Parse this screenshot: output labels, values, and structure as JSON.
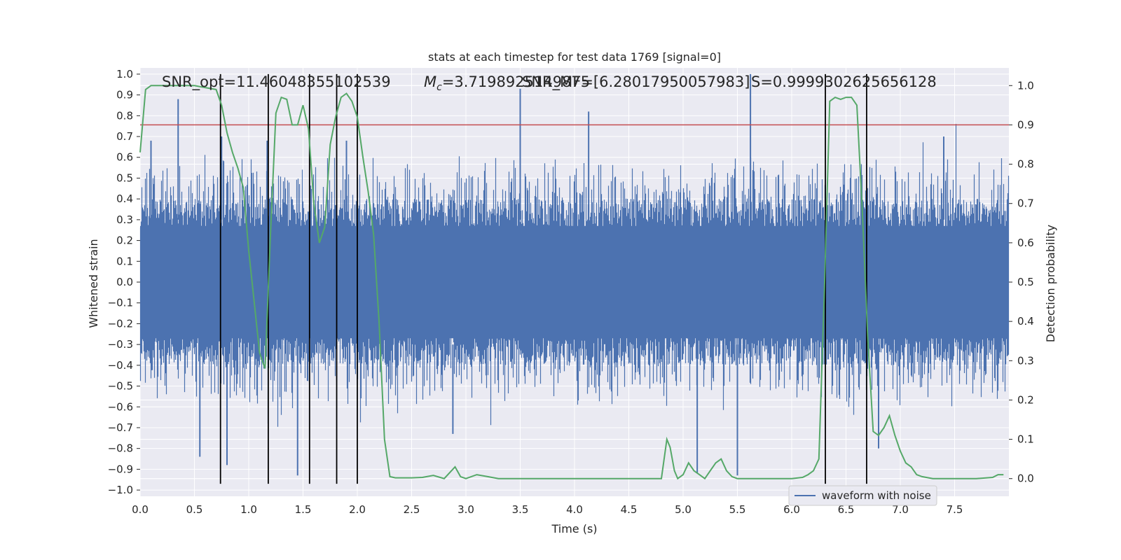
{
  "chart_data": {
    "type": "line",
    "title": "stats at each timestep for test data 1769 [signal=0]",
    "xlabel": "Time (s)",
    "ylabel": "Whitened strain",
    "y2label": "Detection probability",
    "xlim": [
      0.0,
      8.0
    ],
    "ylim": [
      -1.03,
      1.03
    ],
    "y2lim": [
      -0.045,
      1.045
    ],
    "xticks": [
      "0.0",
      "0.5",
      "1.0",
      "1.5",
      "2.0",
      "2.5",
      "3.0",
      "3.5",
      "4.0",
      "4.5",
      "5.0",
      "5.5",
      "6.0",
      "6.5",
      "7.0",
      "7.5"
    ],
    "yticks": [
      "1.0",
      "0.9",
      "0.8",
      "0.7",
      "0.6",
      "0.5",
      "0.4",
      "0.3",
      "0.2",
      "0.1",
      "0.0",
      "−0.1",
      "−0.2",
      "−0.3",
      "−0.4",
      "−0.5",
      "−0.6",
      "−0.7",
      "−0.8",
      "−0.9",
      "−1.0"
    ],
    "y2ticks": [
      "1.0",
      "0.9",
      "0.8",
      "0.7",
      "0.6",
      "0.5",
      "0.4",
      "0.3",
      "0.2",
      "0.1",
      "0.0"
    ],
    "grid": true,
    "legend": {
      "placement": "lower-right",
      "entries": [
        "waveform with noise"
      ]
    },
    "annotations": {
      "snr_opt": "SNR_opt=11.46048355102539",
      "mc_prefix": "M",
      "mc_sub": "c",
      "mc_value": "=3.7198925149875",
      "snr_mf": "SNR_MF=[6.28017950057983]",
      "s": "S=0.9999302625656128"
    },
    "colors": {
      "strain": "#4c72b0",
      "probability": "#55a868",
      "threshold": "#c44e52",
      "markers": "#000000",
      "background": "#eaeaf2",
      "grid": "#ffffff"
    },
    "threshold": 0.9,
    "vertical_markers": [
      0.74,
      1.18,
      1.56,
      1.81,
      2.0,
      6.31,
      6.69
    ],
    "series": [
      {
        "name": "waveform with noise",
        "axis": "left",
        "envelope_note": "dense noise; core approx ±0.3, spikes to ±1.0",
        "peaks": [
          {
            "x": 0.1,
            "y": 0.68
          },
          {
            "x": 0.35,
            "y": 0.88
          },
          {
            "x": 0.75,
            "y": 0.7
          },
          {
            "x": 1.17,
            "y": 0.68
          },
          {
            "x": 1.9,
            "y": 0.68
          },
          {
            "x": 3.5,
            "y": 0.93
          },
          {
            "x": 4.13,
            "y": 0.82
          },
          {
            "x": 5.62,
            "y": 1.0
          },
          {
            "x": 7.4,
            "y": 0.7
          }
        ],
        "troughs": [
          {
            "x": 0.55,
            "y": -0.84
          },
          {
            "x": 0.8,
            "y": -0.88
          },
          {
            "x": 1.45,
            "y": -0.93
          },
          {
            "x": 2.88,
            "y": -0.73
          },
          {
            "x": 5.13,
            "y": -0.92
          },
          {
            "x": 5.5,
            "y": -0.93
          },
          {
            "x": 6.8,
            "y": -0.8
          }
        ]
      },
      {
        "name": "",
        "axis": "right",
        "x": [
          0.0,
          0.05,
          0.1,
          0.2,
          0.3,
          0.4,
          0.5,
          0.6,
          0.7,
          0.75,
          0.8,
          0.85,
          0.9,
          0.95,
          1.0,
          1.05,
          1.1,
          1.15,
          1.2,
          1.25,
          1.3,
          1.35,
          1.4,
          1.45,
          1.5,
          1.55,
          1.6,
          1.65,
          1.7,
          1.75,
          1.8,
          1.85,
          1.9,
          1.95,
          2.0,
          2.05,
          2.1,
          2.15,
          2.2,
          2.25,
          2.3,
          2.35,
          2.5,
          2.6,
          2.7,
          2.8,
          2.9,
          2.95,
          3.0,
          3.1,
          3.2,
          3.3,
          3.4,
          3.5,
          3.7,
          4.0,
          4.5,
          4.7,
          4.8,
          4.85,
          4.88,
          4.92,
          4.95,
          5.0,
          5.05,
          5.1,
          5.15,
          5.2,
          5.3,
          5.35,
          5.4,
          5.45,
          5.5,
          5.6,
          5.8,
          6.0,
          6.1,
          6.15,
          6.2,
          6.25,
          6.3,
          6.35,
          6.4,
          6.45,
          6.5,
          6.55,
          6.6,
          6.65,
          6.7,
          6.75,
          6.8,
          6.85,
          6.9,
          6.95,
          7.0,
          7.05,
          7.1,
          7.15,
          7.2,
          7.3,
          7.5,
          7.7,
          7.85,
          7.9,
          7.95
        ],
        "values": [
          0.83,
          0.99,
          1.0,
          1.0,
          1.0,
          1.0,
          1.0,
          0.995,
          0.99,
          0.95,
          0.88,
          0.83,
          0.79,
          0.74,
          0.58,
          0.45,
          0.32,
          0.28,
          0.62,
          0.93,
          0.97,
          0.965,
          0.9,
          0.9,
          0.95,
          0.89,
          0.7,
          0.6,
          0.64,
          0.85,
          0.92,
          0.97,
          0.98,
          0.96,
          0.92,
          0.82,
          0.73,
          0.62,
          0.4,
          0.1,
          0.005,
          0.002,
          0.002,
          0.003,
          0.008,
          0.0,
          0.03,
          0.005,
          0.0,
          0.01,
          0.005,
          0.0,
          0.0,
          0.0,
          0.0,
          0.0,
          0.0,
          0.0,
          0.0,
          0.1,
          0.08,
          0.02,
          0.0,
          0.01,
          0.04,
          0.02,
          0.01,
          0.0,
          0.04,
          0.05,
          0.02,
          0.005,
          0.0,
          0.0,
          0.0,
          0.0,
          0.003,
          0.01,
          0.02,
          0.05,
          0.47,
          0.96,
          0.97,
          0.965,
          0.97,
          0.97,
          0.95,
          0.68,
          0.36,
          0.12,
          0.11,
          0.13,
          0.16,
          0.11,
          0.07,
          0.04,
          0.03,
          0.01,
          0.005,
          0.0,
          0.0,
          0.0,
          0.003,
          0.01,
          0.01
        ]
      }
    ]
  }
}
